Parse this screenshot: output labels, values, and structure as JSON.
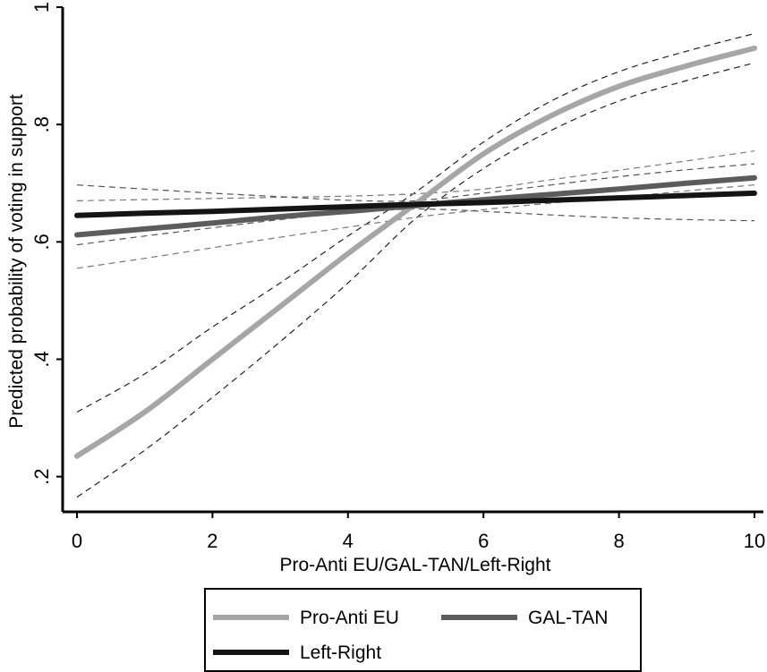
{
  "chart_data": {
    "type": "line",
    "xlabel": "Pro-Anti EU/GAL-TAN/Left-Right",
    "ylabel": "Predicted probability of voting in support",
    "xlim": [
      0,
      10
    ],
    "ylim": [
      0.14,
      1.0
    ],
    "xticks": [
      {
        "value": 0,
        "label": "0"
      },
      {
        "value": 2,
        "label": "2"
      },
      {
        "value": 4,
        "label": "4"
      },
      {
        "value": 6,
        "label": "6"
      },
      {
        "value": 8,
        "label": "8"
      },
      {
        "value": 10,
        "label": "10"
      }
    ],
    "yticks": [
      {
        "value": 0.2,
        "label": ".2"
      },
      {
        "value": 0.4,
        "label": ".4"
      },
      {
        "value": 0.6,
        "label": ".6"
      },
      {
        "value": 0.8,
        "label": ".8"
      },
      {
        "value": 1.0,
        "label": "1"
      }
    ],
    "grid": false,
    "legend_position": "bottom",
    "x": [
      0,
      1,
      2,
      3,
      4,
      5,
      6,
      7,
      8,
      9,
      10
    ],
    "series": [
      {
        "name": "Pro-Anti EU",
        "color": "#a6a6a6",
        "values": [
          0.235,
          0.31,
          0.4,
          0.49,
          0.58,
          0.665,
          0.75,
          0.815,
          0.865,
          0.9,
          0.93
        ],
        "ci_lower": [
          0.165,
          0.245,
          0.335,
          0.43,
          0.53,
          0.64,
          0.725,
          0.79,
          0.84,
          0.875,
          0.905
        ],
        "ci_upper": [
          0.31,
          0.375,
          0.455,
          0.53,
          0.61,
          0.685,
          0.77,
          0.84,
          0.89,
          0.925,
          0.955
        ]
      },
      {
        "name": "GAL-TAN",
        "color": "#5c5c5c",
        "values": [
          0.612,
          0.622,
          0.632,
          0.643,
          0.652,
          0.662,
          0.672,
          0.681,
          0.69,
          0.7,
          0.709
        ],
        "ci_lower": [
          0.555,
          0.572,
          0.59,
          0.608,
          0.625,
          0.642,
          0.655,
          0.666,
          0.676,
          0.687,
          0.697
        ],
        "ci_upper": [
          0.67,
          0.672,
          0.674,
          0.676,
          0.678,
          0.682,
          0.69,
          0.706,
          0.722,
          0.738,
          0.755
        ]
      },
      {
        "name": "Left-Right",
        "color": "#141414",
        "values": [
          0.645,
          0.649,
          0.652,
          0.656,
          0.66,
          0.664,
          0.667,
          0.671,
          0.675,
          0.679,
          0.683
        ],
        "ci_lower": [
          0.595,
          0.61,
          0.624,
          0.638,
          0.65,
          0.656,
          0.652,
          0.646,
          0.641,
          0.638,
          0.636
        ],
        "ci_upper": [
          0.697,
          0.69,
          0.683,
          0.677,
          0.671,
          0.67,
          0.683,
          0.697,
          0.711,
          0.723,
          0.733
        ]
      }
    ]
  }
}
